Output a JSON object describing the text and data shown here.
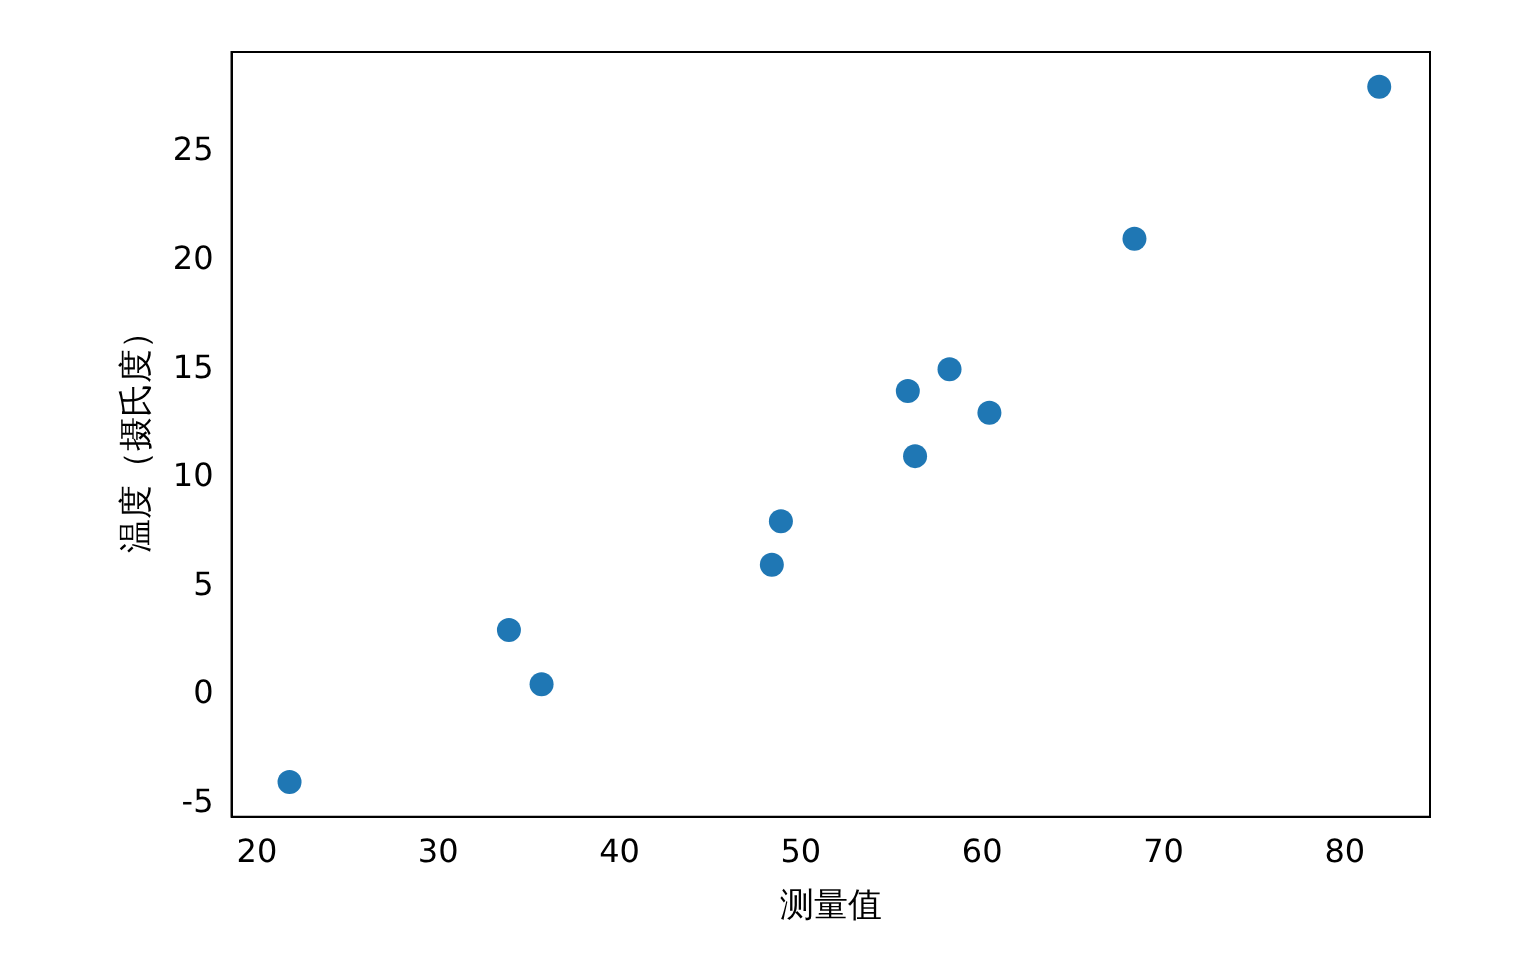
{
  "chart_data": {
    "type": "scatter",
    "xlabel": "测量值",
    "ylabel": "温度（摄氏度）",
    "x": [
      35.7,
      55.9,
      58.2,
      81.9,
      56.3,
      48.9,
      33.9,
      21.8,
      48.4,
      60.4,
      68.4
    ],
    "series": [
      {
        "color": "#1f77b4",
        "values": [
          0.5,
          14.0,
          15.0,
          28.0,
          11.0,
          8.0,
          3.0,
          -4.0,
          6.0,
          13.0,
          21.0
        ]
      }
    ],
    "xlim": [
      18.6,
      84.7
    ],
    "ylim": [
      -5.6,
      29.6
    ],
    "xticks": [
      20,
      30,
      40,
      50,
      60,
      70,
      80
    ],
    "yticks": [
      -5,
      0,
      5,
      10,
      15,
      20,
      25
    ],
    "grid": false,
    "legend": false,
    "marker": "circle"
  }
}
